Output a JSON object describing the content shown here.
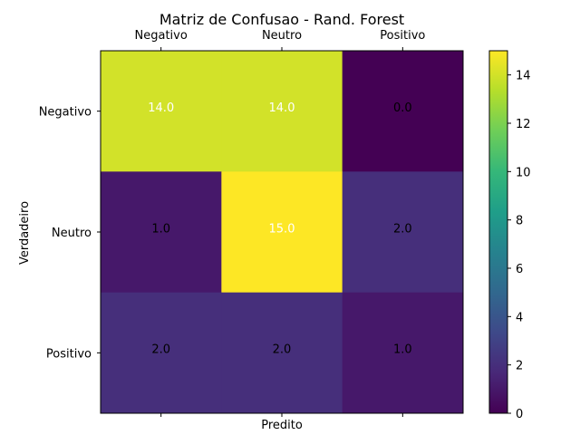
{
  "chart_data": {
    "type": "heatmap",
    "title": "Matriz de Confusao - Rand. Forest",
    "xlabel": "Predito",
    "ylabel": "Verdadeiro",
    "x_categories": [
      "Negativo",
      "Neutro",
      "Positivo"
    ],
    "y_categories": [
      "Negativo",
      "Neutro",
      "Positivo"
    ],
    "cell_labels": [
      [
        "14.0",
        "14.0",
        "0.0"
      ],
      [
        "1.0",
        "15.0",
        "2.0"
      ],
      [
        "2.0",
        "2.0",
        "1.0"
      ]
    ],
    "values": [
      [
        14,
        14,
        0
      ],
      [
        1,
        15,
        2
      ],
      [
        2,
        2,
        1
      ]
    ],
    "colormap": "viridis",
    "vmin": 0,
    "vmax": 15,
    "colorbar_ticks": [
      "0",
      "2",
      "4",
      "6",
      "8",
      "10",
      "12",
      "14"
    ],
    "grid": false
  }
}
